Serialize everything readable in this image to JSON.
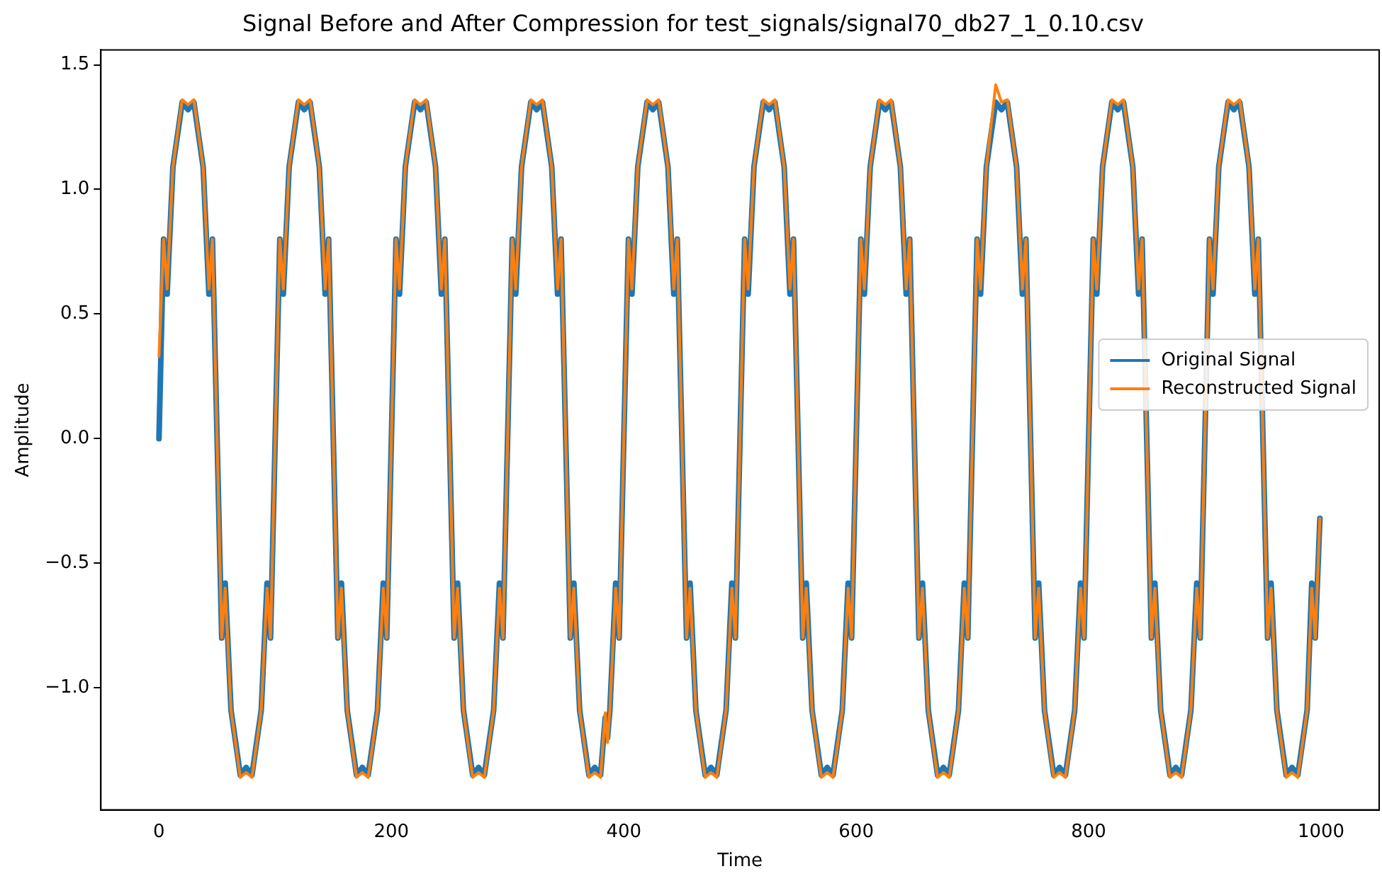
{
  "chart_data": {
    "type": "line",
    "title": "Signal Before and After Compression for test_signals/signal70_db27_1_0.10.csv",
    "xlabel": "Time",
    "ylabel": "Amplitude",
    "x": [
      0,
      4,
      7,
      12,
      20,
      25,
      30,
      38,
      43,
      46,
      50,
      54,
      57,
      62,
      70,
      75,
      80,
      88,
      93,
      96,
      100,
      104,
      107,
      112,
      120,
      125,
      130,
      138,
      143,
      146,
      150,
      154,
      157,
      162,
      170,
      175,
      180,
      188,
      193,
      196,
      200,
      204,
      207,
      212,
      220,
      225,
      230,
      238,
      243,
      246,
      250,
      254,
      257,
      262,
      270,
      275,
      280,
      288,
      293,
      296,
      300,
      304,
      307,
      312,
      320,
      325,
      330,
      338,
      343,
      346,
      350,
      354,
      357,
      362,
      370,
      375,
      380,
      384,
      386,
      388,
      393,
      396,
      400,
      404,
      407,
      412,
      420,
      425,
      430,
      438,
      443,
      446,
      450,
      454,
      457,
      462,
      470,
      475,
      480,
      488,
      493,
      496,
      500,
      504,
      507,
      512,
      520,
      525,
      530,
      538,
      543,
      546,
      550,
      554,
      557,
      562,
      570,
      575,
      580,
      588,
      593,
      596,
      600,
      604,
      607,
      612,
      620,
      625,
      630,
      638,
      643,
      646,
      650,
      654,
      657,
      662,
      670,
      675,
      680,
      688,
      693,
      696,
      700,
      704,
      707,
      712,
      720,
      725,
      730,
      738,
      743,
      746,
      750,
      754,
      757,
      762,
      770,
      775,
      780,
      788,
      793,
      796,
      800,
      804,
      807,
      812,
      820,
      825,
      830,
      838,
      843,
      846,
      850,
      854,
      857,
      862,
      870,
      875,
      880,
      888,
      893,
      896,
      900,
      904,
      907,
      912,
      920,
      925,
      930,
      938,
      943,
      946,
      950,
      954,
      957,
      962,
      970,
      975,
      980,
      988,
      992,
      995,
      999
    ],
    "series": [
      {
        "name": "Original Signal",
        "color": "#1f77b4",
        "values": [
          0,
          0.8,
          0.58,
          1.09,
          1.35,
          1.32,
          1.35,
          1.09,
          0.58,
          0.8,
          0,
          -0.8,
          -0.58,
          -1.09,
          -1.35,
          -1.32,
          -1.35,
          -1.09,
          -0.58,
          -0.8,
          0,
          0.8,
          0.58,
          1.09,
          1.35,
          1.32,
          1.35,
          1.09,
          0.58,
          0.8,
          0,
          -0.8,
          -0.58,
          -1.09,
          -1.35,
          -1.32,
          -1.35,
          -1.09,
          -0.58,
          -0.8,
          0,
          0.8,
          0.58,
          1.09,
          1.35,
          1.32,
          1.35,
          1.09,
          0.58,
          0.8,
          0,
          -0.8,
          -0.58,
          -1.09,
          -1.35,
          -1.32,
          -1.35,
          -1.09,
          -0.58,
          -0.8,
          0,
          0.8,
          0.58,
          1.09,
          1.35,
          1.32,
          1.35,
          1.09,
          0.58,
          0.8,
          0,
          -0.8,
          -0.58,
          -1.09,
          -1.35,
          -1.32,
          -1.35,
          -1.12,
          -1.2,
          -1.09,
          -0.58,
          -0.8,
          0,
          0.8,
          0.58,
          1.09,
          1.35,
          1.32,
          1.35,
          1.09,
          0.58,
          0.8,
          0,
          -0.8,
          -0.58,
          -1.09,
          -1.35,
          -1.32,
          -1.35,
          -1.09,
          -0.58,
          -0.8,
          0,
          0.8,
          0.58,
          1.09,
          1.35,
          1.32,
          1.35,
          1.09,
          0.58,
          0.8,
          0,
          -0.8,
          -0.58,
          -1.09,
          -1.35,
          -1.32,
          -1.35,
          -1.09,
          -0.58,
          -0.8,
          0,
          0.8,
          0.58,
          1.09,
          1.35,
          1.32,
          1.35,
          1.09,
          0.58,
          0.8,
          0,
          -0.8,
          -0.58,
          -1.09,
          -1.35,
          -1.32,
          -1.35,
          -1.09,
          -0.58,
          -0.8,
          0,
          0.8,
          0.58,
          1.09,
          1.35,
          1.32,
          1.35,
          1.09,
          0.58,
          0.8,
          0,
          -0.8,
          -0.58,
          -1.09,
          -1.35,
          -1.32,
          -1.35,
          -1.09,
          -0.58,
          -0.8,
          0,
          0.8,
          0.58,
          1.09,
          1.35,
          1.32,
          1.35,
          1.09,
          0.58,
          0.8,
          0,
          -0.8,
          -0.58,
          -1.09,
          -1.35,
          -1.32,
          -1.35,
          -1.09,
          -0.58,
          -0.8,
          0,
          0.8,
          0.58,
          1.09,
          1.35,
          1.32,
          1.35,
          1.09,
          0.58,
          0.8,
          0,
          -0.8,
          -0.58,
          -1.09,
          -1.35,
          -1.32,
          -1.35,
          -1.09,
          -0.58,
          -0.8,
          -0.32
        ]
      },
      {
        "name": "Reconstructed Signal",
        "color": "#ff7f0e",
        "values": [
          0.33,
          0.8,
          0.6,
          1.09,
          1.36,
          1.34,
          1.36,
          1.09,
          0.6,
          0.8,
          0,
          -0.8,
          -0.6,
          -1.09,
          -1.36,
          -1.34,
          -1.36,
          -1.09,
          -0.6,
          -0.8,
          0,
          0.8,
          0.6,
          1.09,
          1.36,
          1.34,
          1.36,
          1.09,
          0.6,
          0.8,
          0,
          -0.8,
          -0.6,
          -1.09,
          -1.36,
          -1.34,
          -1.36,
          -1.09,
          -0.6,
          -0.8,
          0,
          0.8,
          0.6,
          1.09,
          1.36,
          1.34,
          1.36,
          1.09,
          0.6,
          0.8,
          0,
          -0.8,
          -0.6,
          -1.09,
          -1.36,
          -1.34,
          -1.36,
          -1.09,
          -0.6,
          -0.8,
          0,
          0.8,
          0.6,
          1.09,
          1.36,
          1.34,
          1.36,
          1.09,
          0.6,
          0.8,
          0,
          -0.8,
          -0.6,
          -1.09,
          -1.36,
          -1.34,
          -1.36,
          -1.1,
          -1.22,
          -1.09,
          -0.6,
          -0.8,
          0,
          0.8,
          0.6,
          1.09,
          1.36,
          1.34,
          1.36,
          1.09,
          0.6,
          0.8,
          0,
          -0.8,
          -0.6,
          -1.09,
          -1.36,
          -1.34,
          -1.36,
          -1.09,
          -0.6,
          -0.8,
          0,
          0.8,
          0.6,
          1.09,
          1.36,
          1.34,
          1.36,
          1.09,
          0.6,
          0.8,
          0,
          -0.8,
          -0.6,
          -1.09,
          -1.36,
          -1.34,
          -1.36,
          -1.09,
          -0.6,
          -0.8,
          0,
          0.8,
          0.6,
          1.09,
          1.36,
          1.34,
          1.36,
          1.09,
          0.6,
          0.8,
          0,
          -0.8,
          -0.6,
          -1.09,
          -1.36,
          -1.34,
          -1.36,
          -1.09,
          -0.6,
          -0.8,
          0,
          0.8,
          0.6,
          1.09,
          1.42,
          1.35,
          1.36,
          1.09,
          0.6,
          0.8,
          0,
          -0.8,
          -0.6,
          -1.09,
          -1.36,
          -1.34,
          -1.36,
          -1.09,
          -0.6,
          -0.8,
          0,
          0.8,
          0.6,
          1.09,
          1.36,
          1.34,
          1.36,
          1.09,
          0.6,
          0.8,
          0,
          -0.8,
          -0.6,
          -1.09,
          -1.36,
          -1.34,
          -1.36,
          -1.09,
          -0.6,
          -0.8,
          0,
          0.8,
          0.6,
          1.09,
          1.36,
          1.34,
          1.36,
          1.09,
          0.6,
          0.8,
          0,
          -0.8,
          -0.6,
          -1.09,
          -1.36,
          -1.34,
          -1.36,
          -1.09,
          -0.6,
          -0.8,
          -0.32
        ]
      }
    ],
    "xlim": [
      -50,
      1050
    ],
    "xticks": [
      0,
      200,
      400,
      600,
      800,
      1000
    ],
    "ylim": [
      -1.49,
      1.56
    ],
    "yticks": [
      {
        "value": -1,
        "label": "−1.0"
      },
      {
        "value": -0.5,
        "label": "−0.5"
      },
      {
        "value": 0,
        "label": "0.0"
      },
      {
        "value": 0.5,
        "label": "0.5"
      },
      {
        "value": 1,
        "label": "1.0"
      },
      {
        "value": 1.5,
        "label": "1.5"
      }
    ],
    "grid": false,
    "legend": "right",
    "marker": "none",
    "line_style": "solid"
  }
}
